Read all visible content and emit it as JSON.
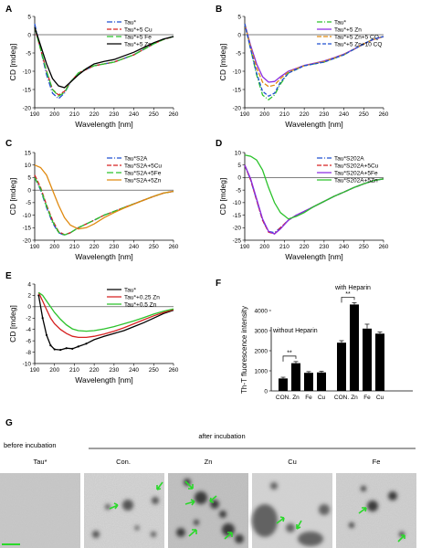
{
  "chart_data": [
    {
      "panel": "A",
      "type": "line",
      "xlabel": "Wavelength [nm]",
      "ylabel": "CD [mdeg]",
      "xlim": [
        190,
        260
      ],
      "ylim": [
        -20,
        5
      ],
      "xticks": [
        190,
        200,
        210,
        220,
        230,
        240,
        250,
        260
      ],
      "yticks": [
        5,
        0,
        -5,
        -10,
        -15,
        -20
      ],
      "legend": "top-right",
      "series": [
        {
          "name": "Tau*",
          "color": "#1f4fd0",
          "dash": "6,2,1,2",
          "x": [
            190,
            193,
            196,
            199,
            202,
            205,
            208,
            212,
            216,
            220,
            225,
            230,
            235,
            240,
            245,
            250,
            255,
            260
          ],
          "y": [
            3,
            -4,
            -11,
            -16,
            -17.5,
            -16,
            -13,
            -10.5,
            -9.5,
            -8.5,
            -8,
            -7.5,
            -6.5,
            -5.5,
            -4,
            -2.5,
            -1.2,
            -0.5
          ]
        },
        {
          "name": "Tau*+5 Cu",
          "color": "#d62020",
          "dash": "5,2",
          "x": [
            190,
            193,
            196,
            199,
            202,
            205,
            208,
            212,
            216,
            220,
            225,
            230,
            235,
            240,
            245,
            250,
            255,
            260
          ],
          "y": [
            2,
            -4,
            -10,
            -15,
            -16.5,
            -15.5,
            -13,
            -10.5,
            -9.5,
            -8.5,
            -8,
            -7.5,
            -6.5,
            -5.5,
            -4,
            -2.5,
            -1.3,
            -0.5
          ]
        },
        {
          "name": "Tau*+5 Fe",
          "color": "#2bc22b",
          "dash": "7,3",
          "x": [
            190,
            193,
            196,
            199,
            202,
            205,
            208,
            212,
            216,
            220,
            225,
            230,
            235,
            240,
            245,
            250,
            255,
            260
          ],
          "y": [
            2,
            -4,
            -10,
            -15,
            -16.8,
            -15.8,
            -13,
            -10.5,
            -9.3,
            -8.5,
            -8,
            -7.5,
            -6.5,
            -5.5,
            -4,
            -2.5,
            -1.3,
            -0.5
          ]
        },
        {
          "name": "Tau*+5 Zn",
          "color": "#000000",
          "dash": "",
          "x": [
            190,
            193,
            196,
            199,
            202,
            205,
            208,
            212,
            216,
            220,
            225,
            230,
            235,
            240,
            245,
            250,
            255,
            260
          ],
          "y": [
            2,
            -3,
            -8,
            -12,
            -14,
            -14.5,
            -13,
            -11,
            -9.3,
            -8,
            -7.3,
            -6.8,
            -5.8,
            -4.8,
            -3.5,
            -2.2,
            -1.2,
            -0.5
          ]
        }
      ]
    },
    {
      "panel": "B",
      "type": "line",
      "xlabel": "Wavelength [nm]",
      "ylabel": "CD [mdeg]",
      "xlim": [
        190,
        260
      ],
      "ylim": [
        -20,
        5
      ],
      "xticks": [
        190,
        200,
        210,
        220,
        230,
        240,
        250,
        260
      ],
      "yticks": [
        5,
        0,
        -5,
        -10,
        -15,
        -20
      ],
      "legend": "top-right",
      "series": [
        {
          "name": "Tau*",
          "color": "#2bc22b",
          "dash": "6,2,1,2",
          "x": [
            190,
            193,
            196,
            199,
            202,
            205,
            208,
            212,
            216,
            220,
            225,
            230,
            235,
            240,
            245,
            250,
            255,
            260
          ],
          "y": [
            3,
            -4,
            -11,
            -16.5,
            -17.8,
            -16.5,
            -13.5,
            -10.5,
            -9.5,
            -8.5,
            -8,
            -7.5,
            -6.5,
            -5.5,
            -4,
            -2.5,
            -1.2,
            -0.5
          ]
        },
        {
          "name": "Tau*+5 Zn",
          "color": "#8a2be2",
          "dash": "",
          "x": [
            190,
            193,
            196,
            199,
            202,
            205,
            208,
            212,
            216,
            220,
            225,
            230,
            235,
            240,
            245,
            250,
            255,
            260
          ],
          "y": [
            3,
            -3,
            -8,
            -11.5,
            -13,
            -12.8,
            -11.5,
            -10,
            -9.2,
            -8.4,
            -7.8,
            -7.2,
            -6.3,
            -5.3,
            -4,
            -2.5,
            -1.3,
            -0.5
          ]
        },
        {
          "name": "Tau*+5 Zn+5 CQ",
          "color": "#e08a10",
          "dash": "5,2",
          "x": [
            190,
            193,
            196,
            199,
            202,
            205,
            208,
            212,
            216,
            220,
            225,
            230,
            235,
            240,
            245,
            250,
            255,
            260
          ],
          "y": [
            3,
            -3.5,
            -9,
            -13,
            -14.2,
            -13.8,
            -12,
            -10.2,
            -9.3,
            -8.5,
            -7.9,
            -7.3,
            -6.4,
            -5.4,
            -4,
            -2.5,
            -1.3,
            -0.5
          ]
        },
        {
          "name": "Tau*+5 Zn+10 CQ",
          "color": "#1f4fd0",
          "dash": "4,2",
          "x": [
            190,
            193,
            196,
            199,
            202,
            205,
            208,
            212,
            216,
            220,
            225,
            230,
            235,
            240,
            245,
            250,
            255,
            260
          ],
          "y": [
            3,
            -4,
            -10.5,
            -15.5,
            -16.8,
            -16,
            -13,
            -10.5,
            -9.5,
            -8.5,
            -8,
            -7.5,
            -6.5,
            -5.5,
            -4,
            -2.5,
            -1.2,
            -0.5
          ]
        }
      ]
    },
    {
      "panel": "C",
      "type": "line",
      "xlabel": "Wavelength [nm]",
      "ylabel": "CD [mdeg]",
      "xlim": [
        190,
        260
      ],
      "ylim": [
        -20,
        15
      ],
      "xticks": [
        190,
        200,
        210,
        220,
        230,
        240,
        250,
        260
      ],
      "yticks": [
        15,
        10,
        5,
        0,
        -5,
        -10,
        -15,
        -20
      ],
      "legend": "top-right",
      "series": [
        {
          "name": "Tau*S2A",
          "color": "#1f4fd0",
          "dash": "6,2,1,2",
          "x": [
            190,
            193,
            196,
            199,
            202,
            205,
            208,
            212,
            216,
            220,
            225,
            230,
            235,
            240,
            245,
            250,
            255,
            260
          ],
          "y": [
            5,
            0,
            -7,
            -13,
            -17,
            -18,
            -17,
            -15,
            -13.5,
            -12,
            -10,
            -8.5,
            -7,
            -5.5,
            -4,
            -2.5,
            -1.2,
            -0.5
          ]
        },
        {
          "name": "Tau*S2A+5Cu",
          "color": "#d62020",
          "dash": "5,2",
          "x": [
            190,
            193,
            196,
            199,
            202,
            205,
            208,
            212,
            216,
            220,
            225,
            230,
            235,
            240,
            245,
            250,
            255,
            260
          ],
          "y": [
            6,
            1,
            -6,
            -12,
            -16.5,
            -17.8,
            -17,
            -15,
            -13.5,
            -12,
            -10,
            -8.5,
            -7,
            -5.5,
            -4,
            -2.5,
            -1.2,
            -0.5
          ]
        },
        {
          "name": "Tau*S2A+5Fe",
          "color": "#2bc22b",
          "dash": "7,3",
          "x": [
            190,
            193,
            196,
            199,
            202,
            205,
            208,
            212,
            216,
            220,
            225,
            230,
            235,
            240,
            245,
            250,
            255,
            260
          ],
          "y": [
            5,
            0.5,
            -6.5,
            -12.5,
            -16.8,
            -17.9,
            -17,
            -15,
            -13.5,
            -12,
            -10,
            -8.5,
            -7,
            -5.5,
            -4,
            -2.5,
            -1.2,
            -0.5
          ]
        },
        {
          "name": "Tau*S2A+5Zn",
          "color": "#e08a10",
          "dash": "",
          "x": [
            190,
            193,
            196,
            199,
            202,
            205,
            208,
            212,
            216,
            220,
            225,
            230,
            235,
            240,
            245,
            250,
            255,
            260
          ],
          "y": [
            10,
            9,
            6,
            0,
            -6,
            -11,
            -14,
            -15.5,
            -15,
            -13.5,
            -11,
            -9,
            -7.2,
            -5.6,
            -4,
            -2.5,
            -1.2,
            -0.5
          ]
        }
      ]
    },
    {
      "panel": "D",
      "type": "line",
      "xlabel": "Wavelength [nm]",
      "ylabel": "CD [mdeg]",
      "xlim": [
        190,
        260
      ],
      "ylim": [
        -25,
        10
      ],
      "xticks": [
        190,
        200,
        210,
        220,
        230,
        240,
        250,
        260
      ],
      "yticks": [
        10,
        5,
        0,
        -5,
        -10,
        -15,
        -20,
        -25
      ],
      "legend": "top-right",
      "series": [
        {
          "name": "Tau*S202A",
          "color": "#1f4fd0",
          "dash": "6,2,1,2",
          "x": [
            190,
            193,
            196,
            199,
            202,
            205,
            208,
            212,
            216,
            220,
            225,
            230,
            235,
            240,
            245,
            250,
            255,
            260
          ],
          "y": [
            5,
            -1,
            -9,
            -17,
            -21.5,
            -22,
            -20,
            -17,
            -15,
            -13.5,
            -11.5,
            -9.5,
            -7.5,
            -5.8,
            -4,
            -2.5,
            -1.2,
            -0.5
          ]
        },
        {
          "name": "Tau*S202A+5Cu",
          "color": "#d62020",
          "dash": "5,2",
          "x": [
            190,
            193,
            196,
            199,
            202,
            205,
            208,
            212,
            216,
            220,
            225,
            230,
            235,
            240,
            245,
            250,
            255,
            260
          ],
          "y": [
            5,
            -1,
            -9,
            -17,
            -21.8,
            -22.5,
            -20,
            -17,
            -15,
            -13.5,
            -11.5,
            -9.5,
            -7.5,
            -5.8,
            -4,
            -2.5,
            -1.2,
            -0.5
          ]
        },
        {
          "name": "Tau*S202A+5Fe",
          "color": "#8a2be2",
          "dash": "",
          "x": [
            190,
            193,
            196,
            199,
            202,
            205,
            208,
            212,
            216,
            220,
            225,
            230,
            235,
            240,
            245,
            250,
            255,
            260
          ],
          "y": [
            5,
            -0.5,
            -8.5,
            -16.5,
            -21.5,
            -22.5,
            -20.5,
            -17,
            -15,
            -13.5,
            -11.5,
            -9.5,
            -7.5,
            -5.8,
            -4,
            -2.5,
            -1.2,
            -0.5
          ]
        },
        {
          "name": "Tau*S202A+5Zn",
          "color": "#2bc22b",
          "dash": "",
          "x": [
            190,
            193,
            196,
            199,
            202,
            205,
            208,
            212,
            216,
            220,
            225,
            230,
            235,
            240,
            245,
            250,
            255,
            260
          ],
          "y": [
            9,
            8.5,
            7,
            3,
            -4,
            -10,
            -14,
            -16.5,
            -15.5,
            -14,
            -11.5,
            -9.5,
            -7.5,
            -5.8,
            -4,
            -2.5,
            -1.2,
            -0.5
          ]
        }
      ]
    },
    {
      "panel": "E",
      "type": "line",
      "xlabel": "Wavelength [nm]",
      "ylabel": "CD [mdeg]",
      "xlim": [
        190,
        260
      ],
      "ylim": [
        -10,
        4
      ],
      "xticks": [
        190,
        200,
        210,
        220,
        230,
        240,
        250,
        260
      ],
      "yticks": [
        4,
        2,
        0,
        -2,
        -4,
        -6,
        -8,
        -10
      ],
      "legend": "top-right",
      "series": [
        {
          "name": "Tau*",
          "color": "#000000",
          "dash": "",
          "x": [
            192,
            194,
            196,
            198,
            200,
            203,
            206,
            209,
            212,
            216,
            220,
            225,
            230,
            235,
            240,
            245,
            250,
            255,
            260
          ],
          "y": [
            2,
            -2,
            -5,
            -6.8,
            -7.5,
            -7.6,
            -7.3,
            -7.4,
            -7,
            -6.5,
            -5.8,
            -5.2,
            -4.7,
            -4.2,
            -3.5,
            -2.8,
            -2,
            -1.2,
            -0.6
          ]
        },
        {
          "name": "Tau*+0.25 Zn",
          "color": "#d62020",
          "dash": "",
          "x": [
            192,
            194,
            196,
            198,
            200,
            203,
            206,
            209,
            212,
            216,
            220,
            225,
            230,
            235,
            240,
            245,
            250,
            255,
            260
          ],
          "y": [
            2.5,
            1,
            -0.5,
            -2,
            -3,
            -4,
            -4.7,
            -5.2,
            -5.4,
            -5.4,
            -5.2,
            -4.8,
            -4.3,
            -3.7,
            -3,
            -2.3,
            -1.6,
            -1,
            -0.5
          ]
        },
        {
          "name": "Tau*+0.5 Zn",
          "color": "#2bc22b",
          "dash": "",
          "x": [
            192,
            194,
            196,
            198,
            200,
            203,
            206,
            209,
            212,
            216,
            220,
            225,
            230,
            235,
            240,
            245,
            250,
            255,
            260
          ],
          "y": [
            2.5,
            2,
            1,
            0,
            -1,
            -2.2,
            -3.2,
            -3.9,
            -4.2,
            -4.3,
            -4.2,
            -3.9,
            -3.5,
            -3,
            -2.5,
            -1.9,
            -1.3,
            -0.8,
            -0.4
          ]
        }
      ]
    },
    {
      "panel": "F",
      "type": "bar",
      "ylabel": "Th-T fluorescence intensity",
      "ylim": [
        0,
        5000
      ],
      "yticks": [
        0,
        1000,
        2000,
        3000,
        4000
      ],
      "groups": [
        {
          "label": "without Heparin",
          "categories": [
            "CON.",
            "Zn",
            "Fe",
            "Cu"
          ],
          "values": [
            620,
            1380,
            900,
            920
          ],
          "errors": [
            60,
            80,
            60,
            60
          ],
          "significance": "**"
        },
        {
          "label": "with Heparin",
          "categories": [
            "CON.",
            "Zn",
            "Fe",
            "Cu"
          ],
          "values": [
            2400,
            4300,
            3100,
            2850
          ],
          "errors": [
            100,
            90,
            220,
            80
          ],
          "significance": "**"
        }
      ]
    }
  ],
  "panels": {
    "A": "A",
    "B": "B",
    "C": "C",
    "D": "D",
    "E": "E",
    "F": "F",
    "G": "G"
  },
  "g_panel": {
    "before_label": "before incubation",
    "after_label": "after incubation",
    "image_titles": [
      "Tau*",
      "Con.",
      "Zn",
      "Cu",
      "Fe"
    ]
  }
}
